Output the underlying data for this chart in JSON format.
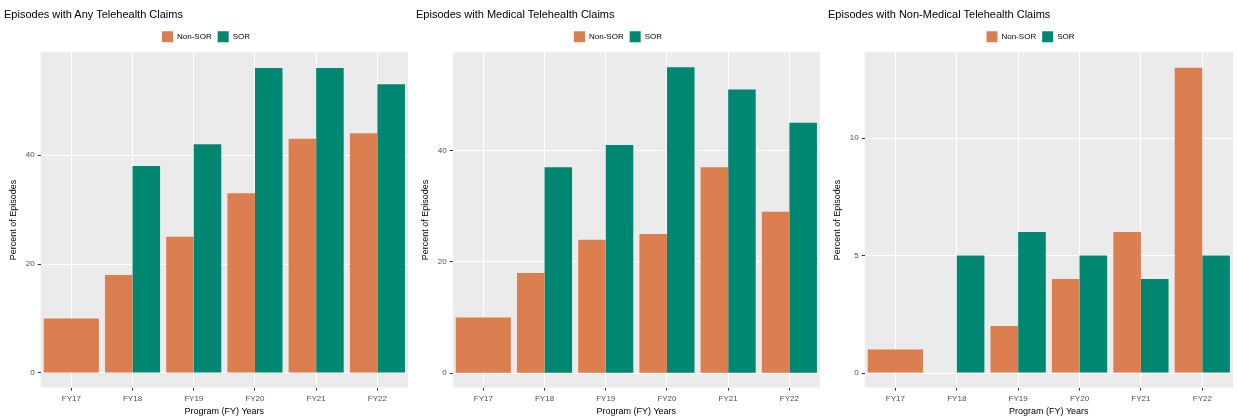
{
  "chart_data": [
    {
      "type": "bar",
      "title": "Episodes with Any Telehealth Claims",
      "xlabel": "Program (FY) Years",
      "ylabel": "Percent of Episodes",
      "categories": [
        "FY17",
        "FY18",
        "FY19",
        "FY20",
        "FY21",
        "FY22"
      ],
      "series": [
        {
          "name": "Non-SOR",
          "color": "#db7f50",
          "values": [
            10,
            18,
            25,
            33,
            43,
            44
          ]
        },
        {
          "name": "SOR",
          "color": "#008771",
          "values": [
            null,
            38,
            42,
            56,
            56,
            53
          ]
        }
      ],
      "ylim": [
        -2.7,
        58.9
      ],
      "yticks": [
        0,
        20,
        40
      ],
      "grid": true,
      "legend": "top"
    },
    {
      "type": "bar",
      "title": "Episodes with Medical Telehealth Claims",
      "xlabel": "Program (FY) Years",
      "ylabel": "Percent of Episodes",
      "categories": [
        "FY17",
        "FY18",
        "FY19",
        "FY20",
        "FY21",
        "FY22"
      ],
      "series": [
        {
          "name": "Non-SOR",
          "color": "#db7f50",
          "values": [
            10,
            18,
            24,
            25,
            37,
            29
          ]
        },
        {
          "name": "SOR",
          "color": "#008771",
          "values": [
            null,
            37,
            41,
            55,
            51,
            45
          ]
        }
      ],
      "ylim": [
        -2.6,
        57.7
      ],
      "yticks": [
        0,
        20,
        40
      ],
      "grid": true,
      "legend": "top"
    },
    {
      "type": "bar",
      "title": "Episodes with Non-Medical Telehealth Claims",
      "xlabel": "Program (FY) Years",
      "ylabel": "Percent of Episodes",
      "categories": [
        "FY17",
        "FY18",
        "FY19",
        "FY20",
        "FY21",
        "FY22"
      ],
      "series": [
        {
          "name": "Non-SOR",
          "color": "#db7f50",
          "values": [
            1,
            0,
            2,
            4,
            6,
            13
          ]
        },
        {
          "name": "SOR",
          "color": "#008771",
          "values": [
            null,
            5,
            6,
            5,
            4,
            5
          ]
        }
      ],
      "ylim": [
        -0.62,
        13.66
      ],
      "yticks": [
        0,
        5,
        10
      ],
      "grid": true,
      "legend": "top"
    }
  ]
}
